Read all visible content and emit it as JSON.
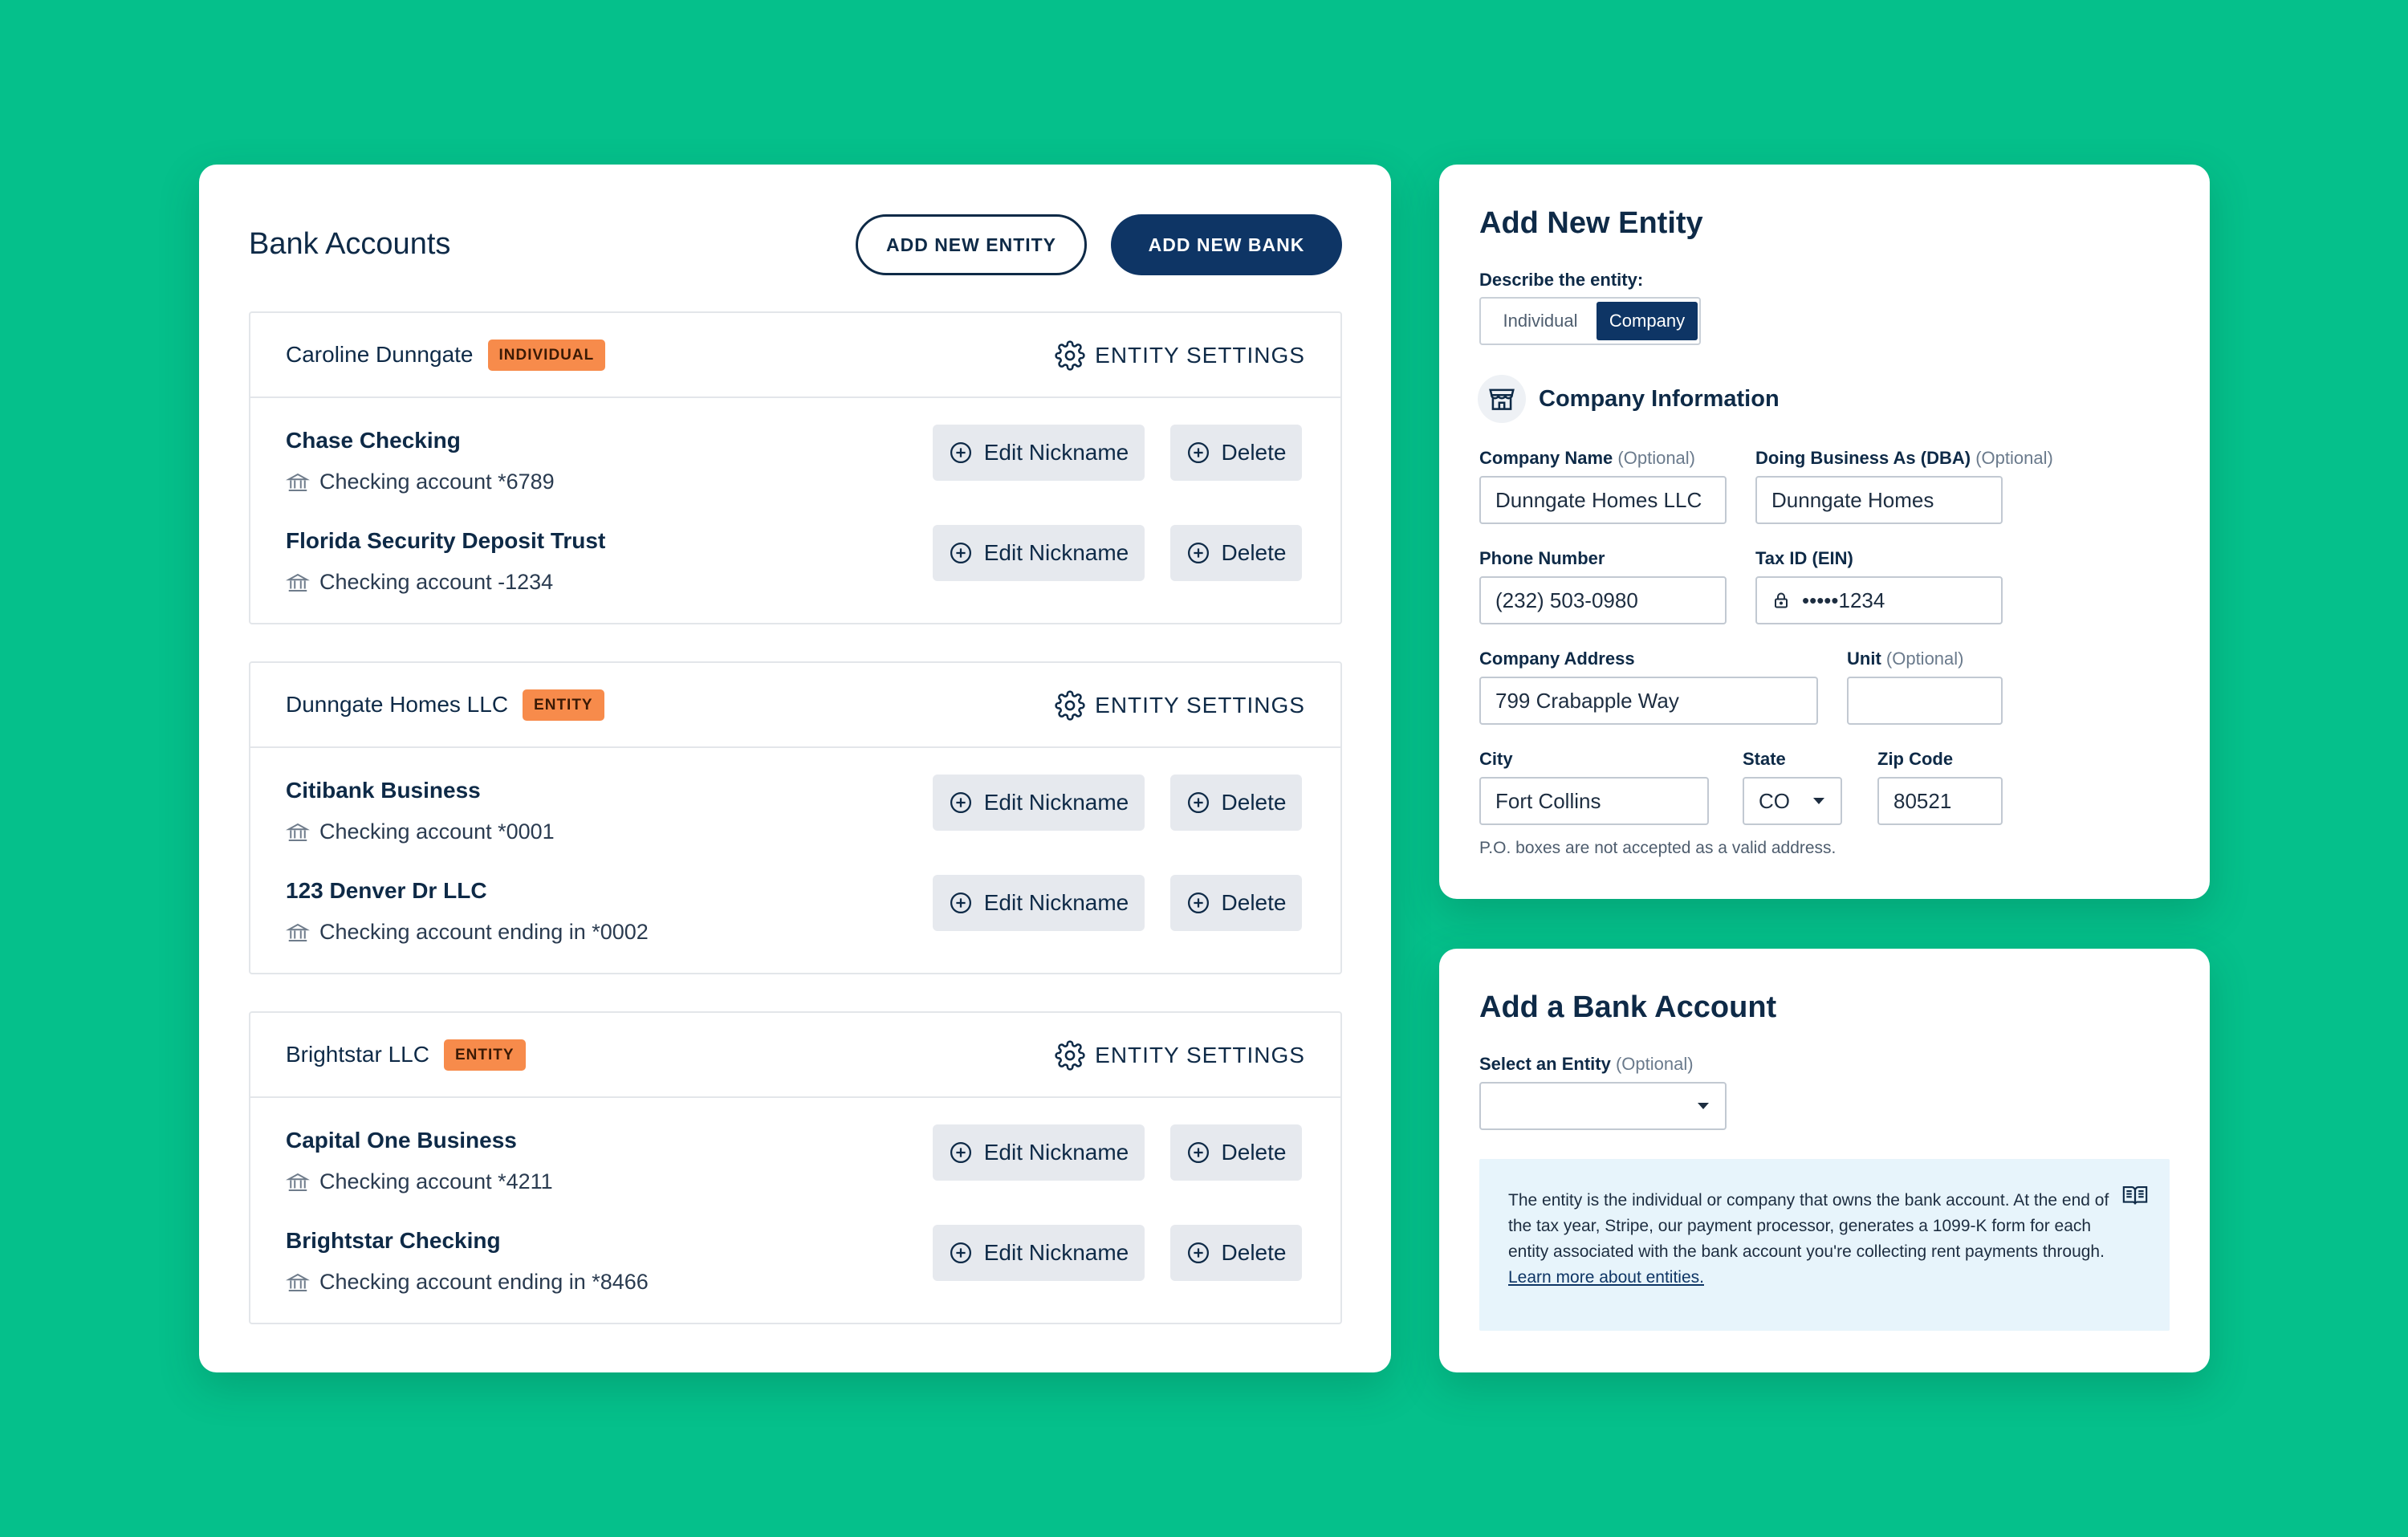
{
  "bank_accounts": {
    "title": "Bank Accounts",
    "add_entity_label": "ADD NEW ENTITY",
    "add_bank_label": "ADD NEW BANK",
    "settings_label": "ENTITY SETTINGS",
    "edit_label": "Edit Nickname",
    "delete_label": "Delete",
    "groups": [
      {
        "name": "Caroline Dunngate",
        "badge": "INDIVIDUAL",
        "accounts": [
          {
            "name": "Chase Checking",
            "detail": "Checking account *6789"
          },
          {
            "name": "Florida Security Deposit Trust",
            "detail": "Checking account -1234"
          }
        ]
      },
      {
        "name": "Dunngate Homes LLC",
        "badge": "ENTITY",
        "accounts": [
          {
            "name": "Citibank Business",
            "detail": "Checking account *0001"
          },
          {
            "name": "123 Denver Dr LLC",
            "detail": "Checking account ending in *0002"
          }
        ]
      },
      {
        "name": "Brightstar LLC",
        "badge": "ENTITY",
        "accounts": [
          {
            "name": "Capital One Business",
            "detail": "Checking account *4211"
          },
          {
            "name": "Brightstar Checking",
            "detail": "Checking account ending in *8466"
          }
        ]
      }
    ]
  },
  "add_entity": {
    "title": "Add New Entity",
    "describe_label": "Describe the entity:",
    "options": [
      "Individual",
      "Company"
    ],
    "selected_option": "Company",
    "section_title": "Company Information",
    "optional_text": "(Optional)",
    "company_name_label": "Company Name",
    "company_name_value": "Dunngate Homes LLC",
    "dba_label": "Doing Business As (DBA)",
    "dba_value": "Dunngate Homes",
    "phone_label": "Phone Number",
    "phone_value": "(232) 503-0980",
    "tax_label": "Tax ID (EIN)",
    "tax_value": "•••••1234",
    "address_label": "Company Address",
    "address_value": "799 Crabapple Way",
    "unit_label": "Unit",
    "unit_value": "",
    "city_label": "City",
    "city_value": "Fort Collins",
    "state_label": "State",
    "state_value": "CO",
    "zip_label": "Zip Code",
    "zip_value": "80521",
    "po_note": "P.O. boxes are not accepted as a valid address."
  },
  "add_bank": {
    "title": "Add a Bank Account",
    "select_label": "Select an Entity",
    "optional_text": "(Optional)",
    "select_value": "",
    "info_text": "The entity is the individual or company that owns the bank account. At the end of the tax year, Stripe, our payment processor, generates a 1099-K form for each entity associated with the bank account you're collecting rent payments through.",
    "info_link": "Learn more about entities."
  },
  "colors": {
    "background": "#05c08b",
    "navy": "#0e3565",
    "badge": "#f78b4b",
    "info_bg": "#e7f4fb"
  },
  "icons": [
    "gear-icon",
    "bank-icon",
    "plus-circle-icon",
    "storefront-icon",
    "lock-icon",
    "caret-down-icon",
    "book-icon"
  ]
}
